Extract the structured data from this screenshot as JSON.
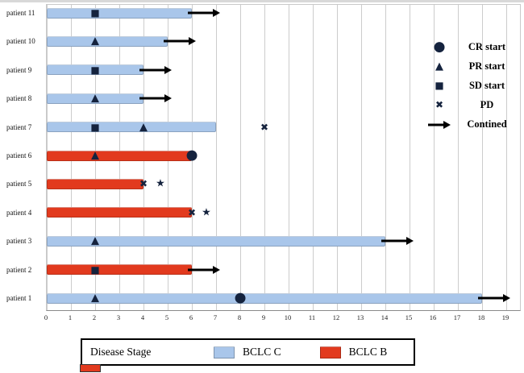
{
  "chart_data": {
    "type": "bar",
    "subtype": "swimmer-plot",
    "title": "",
    "xlabel": "",
    "ylabel": "",
    "xlim": [
      0,
      19.6
    ],
    "x_ticks": [
      0,
      1,
      2,
      3,
      4,
      5,
      6,
      7,
      8,
      9,
      10,
      11,
      12,
      13,
      14,
      15,
      16,
      17,
      18,
      19
    ],
    "grid": true,
    "marker_color": "#15233e",
    "arrow_color": "#000000",
    "stage_colors": {
      "BCLC C": "#a9c6ea",
      "BCLC B": "#e23a1e"
    },
    "glyphs": {
      "circle": "●",
      "triangle": "▲",
      "square": "■",
      "x": "✖",
      "star": "★"
    },
    "patients": [
      {
        "label": "patient 11",
        "stage": "BCLC C",
        "end": 6,
        "markers": [
          {
            "t": "square",
            "x": 2
          }
        ],
        "arrow": true
      },
      {
        "label": "patient 10",
        "stage": "BCLC C",
        "end": 5,
        "markers": [
          {
            "t": "triangle",
            "x": 2
          }
        ],
        "arrow": true
      },
      {
        "label": "patient 9",
        "stage": "BCLC C",
        "end": 4,
        "markers": [
          {
            "t": "square",
            "x": 2
          }
        ],
        "arrow": true
      },
      {
        "label": "patient 8",
        "stage": "BCLC C",
        "end": 4,
        "markers": [
          {
            "t": "triangle",
            "x": 2
          }
        ],
        "arrow": true
      },
      {
        "label": "patient 7",
        "stage": "BCLC C",
        "end": 7,
        "markers": [
          {
            "t": "square",
            "x": 2
          },
          {
            "t": "triangle",
            "x": 4
          },
          {
            "t": "x",
            "x": 9
          }
        ],
        "arrow": false
      },
      {
        "label": "patient 6",
        "stage": "BCLC B",
        "end": 6,
        "markers": [
          {
            "t": "triangle",
            "x": 2
          },
          {
            "t": "circle",
            "x": 6
          }
        ],
        "arrow": false
      },
      {
        "label": "patient 5",
        "stage": "BCLC B",
        "end": 4,
        "markers": [
          {
            "t": "x",
            "x": 4
          },
          {
            "t": "star",
            "x": 4.7
          }
        ],
        "arrow": false
      },
      {
        "label": "patient 4",
        "stage": "BCLC B",
        "end": 6,
        "markers": [
          {
            "t": "x",
            "x": 6
          },
          {
            "t": "star",
            "x": 6.6
          }
        ],
        "arrow": false
      },
      {
        "label": "patient 3",
        "stage": "BCLC C",
        "end": 14,
        "markers": [
          {
            "t": "triangle",
            "x": 2
          }
        ],
        "arrow": true
      },
      {
        "label": "patient 2",
        "stage": "BCLC B",
        "end": 6,
        "markers": [
          {
            "t": "square",
            "x": 2
          }
        ],
        "arrow": true
      },
      {
        "label": "patient 1",
        "stage": "BCLC C",
        "end": 18,
        "markers": [
          {
            "t": "triangle",
            "x": 2
          },
          {
            "t": "circle",
            "x": 8
          }
        ],
        "arrow": true
      }
    ],
    "legend": {
      "position": "top-right",
      "items": [
        {
          "marker": "circle",
          "label": "CR start"
        },
        {
          "marker": "triangle",
          "label": "PR start"
        },
        {
          "marker": "square",
          "label": "SD start"
        },
        {
          "marker": "x",
          "label": "PD"
        },
        {
          "marker": "arrow",
          "label": "Contined"
        }
      ]
    },
    "stage_legend": {
      "title": "Disease Stage",
      "items": [
        {
          "label": "BCLC C",
          "color": "#a9c6ea"
        },
        {
          "label": "BCLC B",
          "color": "#e23a1e"
        }
      ]
    }
  }
}
